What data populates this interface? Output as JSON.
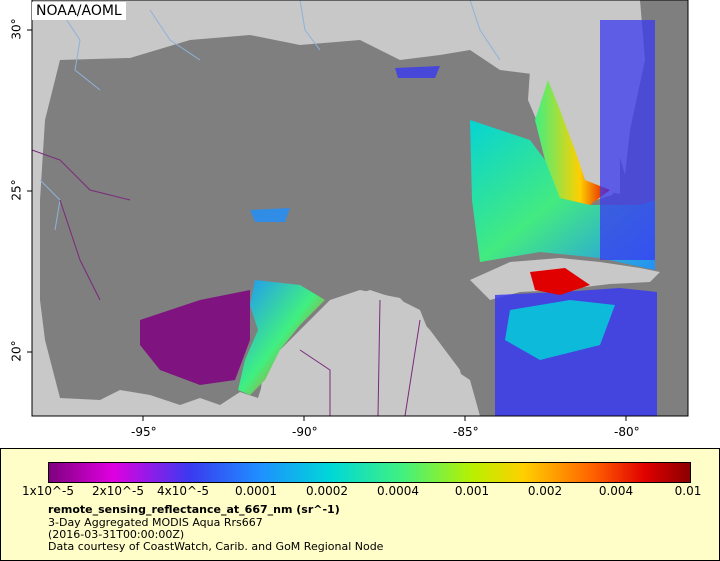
{
  "attribution": "NOAA/AOML",
  "map": {
    "x_ticks": [
      {
        "lon": -95,
        "label": "-95°"
      },
      {
        "lon": -90,
        "label": "-90°"
      },
      {
        "lon": -85,
        "label": "-85°"
      },
      {
        "lon": -80,
        "label": "-80°"
      }
    ],
    "y_ticks": [
      {
        "lat": 30,
        "label": "30°"
      },
      {
        "lat": 25,
        "label": "25°"
      },
      {
        "lat": 20,
        "label": "20°"
      }
    ]
  },
  "legend": {
    "colorbar_labels": [
      "1x10^-5",
      "2x10^-5",
      "4x10^-5",
      "0.0001",
      "0.0002",
      "0.0004",
      "0.001",
      "0.002",
      "0.004",
      "0.01"
    ],
    "variable_name": "remote_sensing_reflectance_at_667_nm (sr^-1)",
    "line1": "3-Day Aggregated MODIS Aqua Rrs667",
    "line2": "(2016-03-31T00:00:00Z)",
    "line3": "Data courtesy of CoastWatch, Carib. and GoM Regional Node"
  },
  "colors": {
    "land": "#c8c8c8",
    "ocean_no_data": "#7f7f7f",
    "rivers": "#8fb2d9",
    "borders": "#7a2a7a",
    "legend_background": "#fffec8",
    "colormap": [
      "#7f007f",
      "#e000e0",
      "#3a3af0",
      "#1e90ff",
      "#00d8d8",
      "#40f080",
      "#b8f000",
      "#ffd000",
      "#ff6000",
      "#e00000",
      "#8b0000"
    ]
  }
}
